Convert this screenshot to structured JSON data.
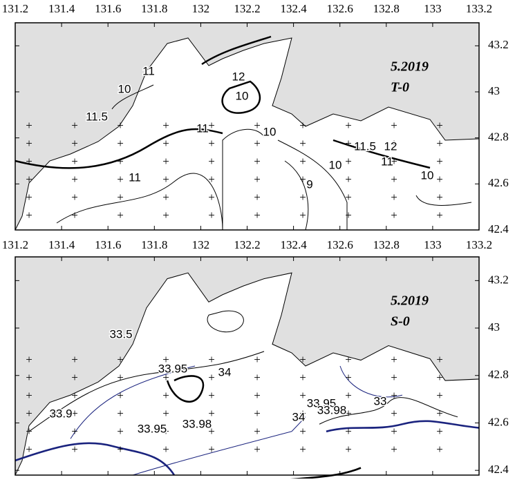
{
  "panels": [
    {
      "xticks": [
        131.2,
        131.4,
        131.6,
        131.8,
        132,
        132.2,
        132.4,
        132.6,
        132.8,
        133,
        133.2
      ],
      "yticks": [
        42.4,
        42.6,
        42.8,
        43,
        43.2
      ],
      "xlim": [
        131.2,
        133.2
      ],
      "ylim": [
        42.4,
        43.3
      ],
      "date": "5.2019",
      "label": "T-0",
      "contour_labels": [
        "11",
        "10",
        "11.5",
        "12",
        "10",
        "11",
        "11",
        "10",
        "10",
        "9",
        "11.5",
        "12",
        "11",
        "10"
      ]
    },
    {
      "xticks": [
        131.2,
        131.4,
        131.6,
        131.8,
        132,
        132.2,
        132.4,
        132.6,
        132.8,
        133,
        133.2
      ],
      "yticks": [
        42.4,
        42.6,
        42.8,
        43,
        43.2
      ],
      "xlim": [
        131.2,
        133.2
      ],
      "ylim": [
        42.38,
        43.3
      ],
      "date": "5.2019",
      "label": "S-0",
      "contour_labels": [
        "33.5",
        "33.95",
        "34",
        "33.9",
        "33.95",
        "33.98",
        "34",
        "33.95",
        "33.98",
        "33"
      ]
    }
  ]
}
